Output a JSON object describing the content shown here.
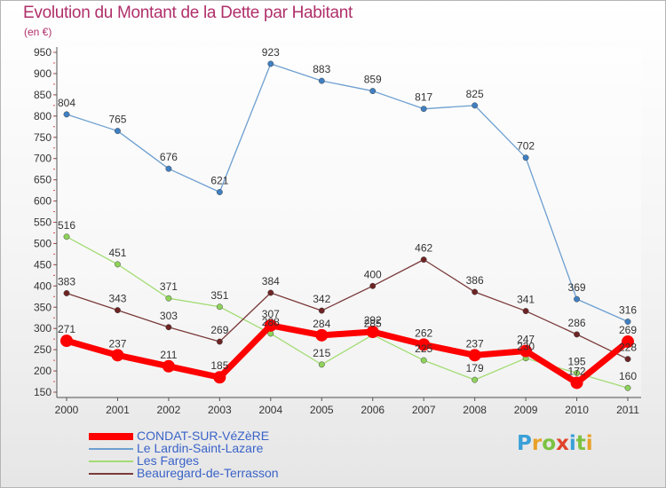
{
  "title": "Evolution du Montant de la Dette par Habitant",
  "subtitle": "(en €)",
  "logo": "Proxiti",
  "chart_data": {
    "type": "line",
    "title": "Evolution du Montant de la Dette par Habitant",
    "ylabel": "(en €)",
    "xlabel": "",
    "x": [
      "2000",
      "2001",
      "2002",
      "2003",
      "2004",
      "2005",
      "2006",
      "2007",
      "2008",
      "2009",
      "2010",
      "2011"
    ],
    "ylim": [
      150,
      950
    ],
    "yticks": [
      150,
      200,
      250,
      300,
      350,
      400,
      450,
      500,
      550,
      600,
      650,
      700,
      750,
      800,
      850,
      900,
      950
    ],
    "grid": false,
    "legend_position": "bottom-left",
    "series": [
      {
        "name": "CONDAT-SUR-VéZèRE",
        "color": "#ff0000",
        "marker": "#ff0000",
        "width": 7,
        "values": [
          271,
          237,
          211,
          185,
          307,
          284,
          292,
          262,
          237,
          247,
          172,
          269
        ]
      },
      {
        "name": "Le Lardin-Saint-Lazare",
        "color": "#6d9fd0",
        "marker": "#3f7fc2",
        "width": 1.3,
        "values": [
          804,
          765,
          676,
          621,
          923,
          883,
          859,
          817,
          825,
          702,
          369,
          316
        ]
      },
      {
        "name": "Les Farges",
        "color": "#a3dc73",
        "marker": "#8ed35a",
        "width": 1.3,
        "values": [
          516,
          451,
          371,
          351,
          288,
          215,
          285,
          225,
          179,
          230,
          195,
          160
        ]
      },
      {
        "name": "Beauregard-de-Terrasson",
        "color": "#7b3a3a",
        "marker": "#6e2424",
        "width": 1.3,
        "values": [
          383,
          343,
          303,
          269,
          384,
          342,
          400,
          462,
          386,
          341,
          286,
          228
        ]
      }
    ]
  }
}
